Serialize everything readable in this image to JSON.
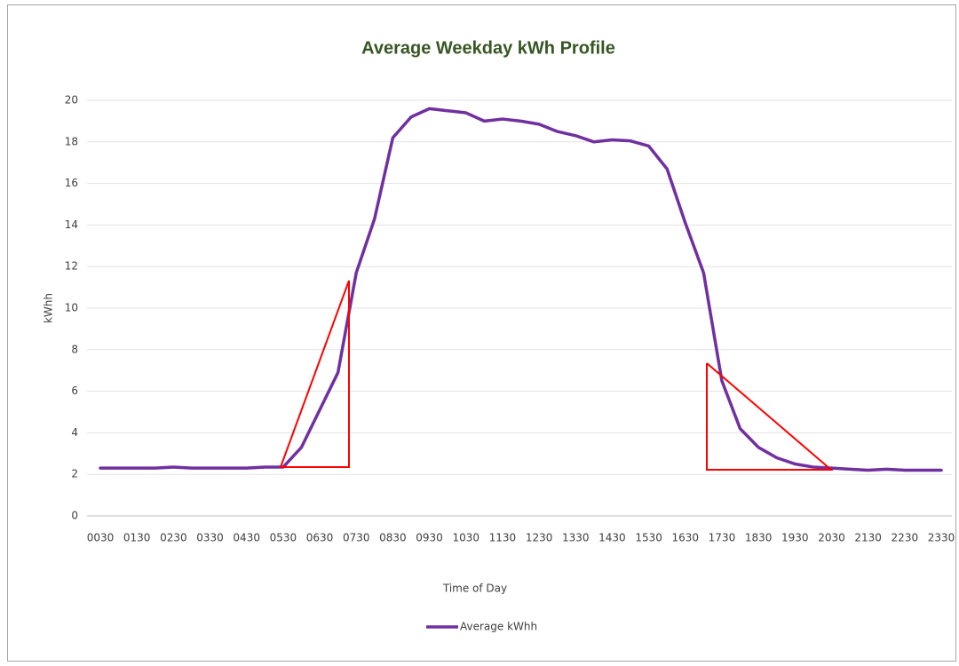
{
  "chart_data": {
    "type": "line",
    "title": "Average Weekday kWh Profile",
    "xlabel": "Time of Day",
    "ylabel": "kWhh",
    "categories": [
      "0030",
      null,
      "0130",
      null,
      "0230",
      null,
      "0330",
      null,
      "0430",
      null,
      "0530",
      null,
      "0630",
      null,
      "0730",
      null,
      "0830",
      null,
      "0930",
      null,
      "1030",
      null,
      "1130",
      null,
      "1230",
      null,
      "1330",
      null,
      "1430",
      null,
      "1530",
      null,
      "1630",
      null,
      "1730",
      null,
      "1830",
      null,
      "1930",
      null,
      "2030",
      null,
      "2130",
      null,
      "2230",
      null,
      "2330"
    ],
    "series": [
      {
        "name": "Average kWhh",
        "color": "#7030a0",
        "values": [
          2.3,
          2.3,
          2.3,
          2.3,
          2.35,
          2.3,
          2.3,
          2.3,
          2.3,
          2.35,
          2.35,
          3.3,
          5.1,
          6.9,
          11.7,
          14.3,
          18.2,
          19.2,
          19.6,
          19.5,
          19.4,
          19.0,
          19.1,
          19.0,
          18.85,
          18.5,
          18.3,
          18.0,
          18.1,
          18.05,
          17.8,
          16.7,
          14.1,
          11.7,
          6.5,
          4.2,
          3.3,
          2.8,
          2.5,
          2.35,
          2.3,
          2.25,
          2.2,
          2.25,
          2.2,
          2.2,
          2.2
        ]
      }
    ],
    "ylim": [
      0,
      20
    ],
    "yticks": [
      0,
      2,
      4,
      6,
      8,
      10,
      12,
      14,
      16,
      18,
      20
    ],
    "grid": true
  }
}
